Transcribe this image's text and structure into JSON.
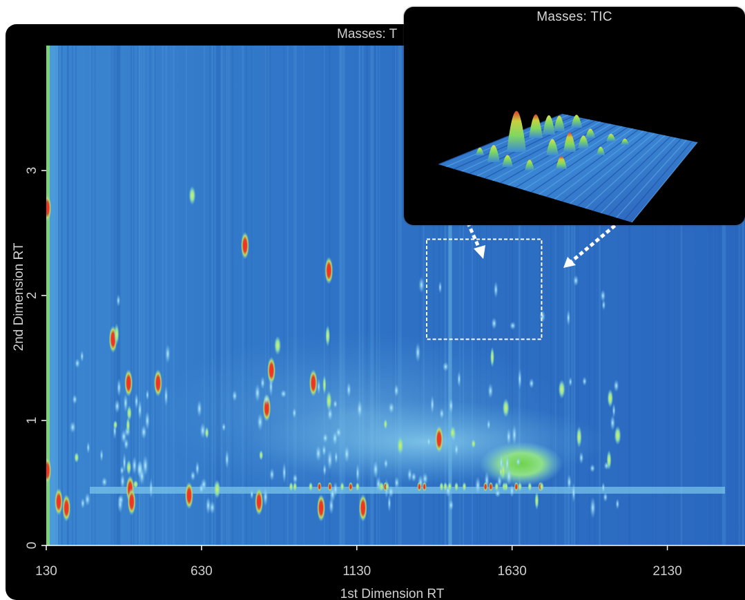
{
  "main_title": "Masses: T",
  "inset_title": "Masses: TIC",
  "chart_data": {
    "type": "heatmap",
    "title": "Masses: TIC",
    "xlabel": "1st Dimension RT",
    "ylabel": "2nd Dimension RT",
    "xlim": [
      130,
      2380
    ],
    "ylim": [
      0,
      4
    ],
    "x_ticks": [
      130,
      630,
      1130,
      1630,
      2130
    ],
    "y_ticks": [
      0,
      1,
      2,
      3
    ],
    "x_tick_labels": [
      "130",
      "630",
      "1130",
      "1630",
      "2130"
    ],
    "y_tick_labels": [
      "0",
      "1",
      "2",
      "3"
    ],
    "colors": {
      "background": "#2f6fc4",
      "low": "#5aa8e6",
      "mid": "#8be07a",
      "high": "#e83a2a"
    },
    "zoom_box": {
      "x_range": [
        1355,
        1725
      ],
      "y_range": [
        1.65,
        2.45
      ]
    },
    "peaks": [
      {
        "x": 133,
        "y": 2.7,
        "intensity": "high"
      },
      {
        "x": 133,
        "y": 0.6,
        "intensity": "high"
      },
      {
        "x": 170,
        "y": 0.35,
        "intensity": "high"
      },
      {
        "x": 195,
        "y": 0.3,
        "intensity": "high"
      },
      {
        "x": 345,
        "y": 1.65,
        "intensity": "high"
      },
      {
        "x": 395,
        "y": 1.3,
        "intensity": "high"
      },
      {
        "x": 400,
        "y": 0.45,
        "intensity": "high"
      },
      {
        "x": 405,
        "y": 0.35,
        "intensity": "high"
      },
      {
        "x": 490,
        "y": 1.3,
        "intensity": "high"
      },
      {
        "x": 600,
        "y": 2.8,
        "intensity": "mid"
      },
      {
        "x": 590,
        "y": 0.4,
        "intensity": "high"
      },
      {
        "x": 680,
        "y": 0.45,
        "intensity": "mid"
      },
      {
        "x": 770,
        "y": 2.4,
        "intensity": "high"
      },
      {
        "x": 815,
        "y": 0.35,
        "intensity": "high"
      },
      {
        "x": 855,
        "y": 1.4,
        "intensity": "high"
      },
      {
        "x": 840,
        "y": 1.1,
        "intensity": "high"
      },
      {
        "x": 875,
        "y": 1.6,
        "intensity": "mid"
      },
      {
        "x": 990,
        "y": 1.3,
        "intensity": "high"
      },
      {
        "x": 1015,
        "y": 0.3,
        "intensity": "high"
      },
      {
        "x": 1040,
        "y": 2.2,
        "intensity": "high"
      },
      {
        "x": 1150,
        "y": 0.3,
        "intensity": "high"
      },
      {
        "x": 1270,
        "y": 0.8,
        "intensity": "mid"
      },
      {
        "x": 1395,
        "y": 0.85,
        "intensity": "high"
      },
      {
        "x": 1610,
        "y": 1.1,
        "intensity": "mid"
      },
      {
        "x": 1600,
        "y": 0.6,
        "intensity": "mid"
      },
      {
        "x": 1790,
        "y": 1.25,
        "intensity": "mid"
      },
      {
        "x": 1970,
        "y": 0.88,
        "intensity": "mid"
      }
    ]
  }
}
